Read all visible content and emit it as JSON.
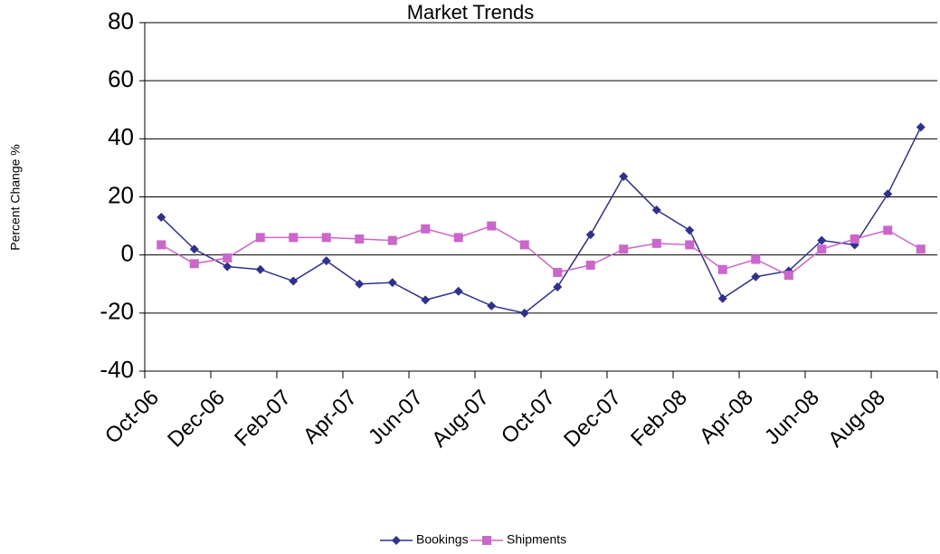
{
  "chart_data": {
    "type": "line",
    "title": "Market Trends",
    "y_label": "Percent Change %",
    "categories": [
      "Oct-06",
      null,
      "Dec-06",
      null,
      "Feb-07",
      null,
      "Apr-07",
      null,
      "Jun-07",
      null,
      "Aug-07",
      null,
      "Oct-07",
      null,
      "Dec-07",
      null,
      "Feb-08",
      null,
      "Apr-08",
      null,
      "Jun-08",
      null,
      "Aug-08",
      null
    ],
    "series": [
      {
        "name": "Bookings",
        "color": "#2e3192",
        "marker": "diamond",
        "values": [
          13,
          2,
          -4,
          -5,
          -9,
          -2,
          -10,
          -9.5,
          -15.5,
          -12.5,
          -17.5,
          -20,
          -11,
          7,
          27,
          15.5,
          8.5,
          -15,
          -7.5,
          -5.5,
          5,
          3.5,
          21,
          44
        ]
      },
      {
        "name": "Shipments",
        "color": "#cc66cc",
        "marker": "square",
        "values": [
          3.5,
          -3,
          -1,
          6,
          6,
          6,
          5.5,
          5,
          9,
          6,
          10,
          3.5,
          -6,
          -3.5,
          2,
          4,
          3.5,
          -5,
          -1.5,
          -7,
          2,
          5.5,
          8.5,
          2
        ]
      }
    ],
    "ylim": [
      -40,
      80
    ],
    "yticks": [
      -40,
      -20,
      0,
      20,
      40,
      60,
      80
    ],
    "grid": true,
    "legend": "bottom"
  }
}
